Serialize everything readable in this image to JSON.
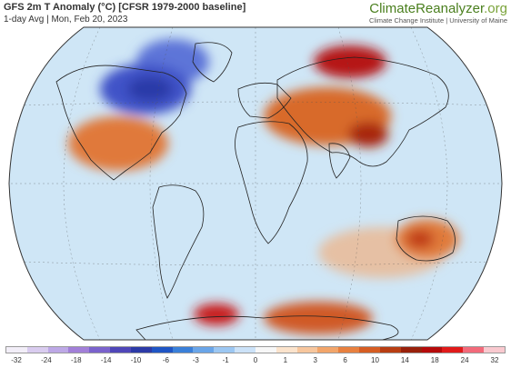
{
  "header": {
    "title": "GFS 2m T Anomaly (°C) [CFSR 1979-2000 baseline]",
    "subtitle": "1-day Avg | Mon, Feb 20, 2023"
  },
  "brand": {
    "name_main": "ClimateReanalyzer",
    "name_suffix": ".org",
    "subtitle": "Climate Change Institute | University of Maine"
  },
  "map": {
    "projection": "robinson",
    "ocean_color": "#cfe6f6",
    "land_outline_color": "#222222"
  },
  "legend": {
    "tick_labels": [
      "-32",
      "-24",
      "-18",
      "-14",
      "-10",
      "-6",
      "-3",
      "-1",
      "0",
      "1",
      "3",
      "6",
      "10",
      "14",
      "18",
      "24",
      "32"
    ],
    "colors": [
      "#f2eef8",
      "#d9ccef",
      "#bda8e6",
      "#a27fd8",
      "#7a62cc",
      "#4f46b8",
      "#2c3aa6",
      "#1f55c4",
      "#3a7fd8",
      "#6aa5e8",
      "#9cc7f2",
      "#cce2f8",
      "#f7f7f7",
      "#fbe3cc",
      "#f7c69d",
      "#f2a56a",
      "#e8803f",
      "#d65d22",
      "#b83d12",
      "#98200a",
      "#b50a0a",
      "#e01a1a",
      "#f26a7a",
      "#f9c9cf"
    ]
  },
  "anomalies": [
    {
      "name": "canada-cold",
      "color": "#3f52c8"
    },
    {
      "name": "canada-cold-core",
      "color": "#2a3ba8"
    },
    {
      "name": "greenland-cold",
      "color": "#5d75d8"
    },
    {
      "name": "us-warm",
      "color": "#e0793a"
    },
    {
      "name": "siberia-hot",
      "color": "#b51818"
    },
    {
      "name": "asia-warm",
      "color": "#d86a2a"
    },
    {
      "name": "china-hot",
      "color": "#a82810"
    },
    {
      "name": "australia-warm",
      "color": "#e07a3a"
    },
    {
      "name": "australia-hot",
      "color": "#c03a18"
    },
    {
      "name": "antarctica-warm",
      "color": "#d05a28"
    },
    {
      "name": "antarctica-hot",
      "color": "#c81a1a"
    },
    {
      "name": "south-pacific-warm",
      "color": "#f0b080"
    }
  ]
}
